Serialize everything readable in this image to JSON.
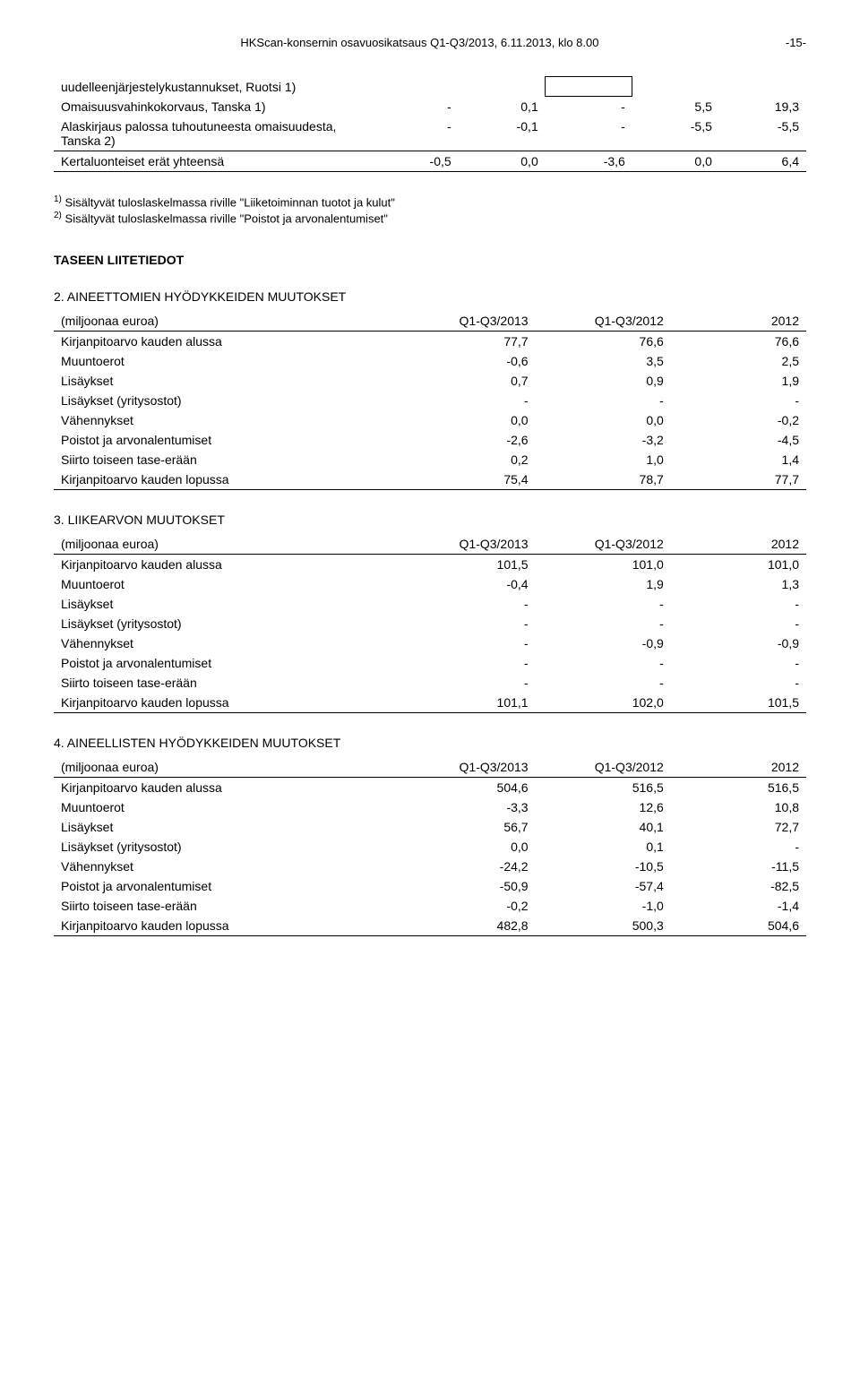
{
  "header": {
    "center": "HKScan-konsernin osavuosikatsaus Q1-Q3/2013, 6.11.2013, klo 8.00",
    "right": "-15-"
  },
  "topTable": {
    "rows": [
      {
        "label": "uudelleenjärjestelykustannukset, Ruotsi 1)",
        "c1": "",
        "c2": "",
        "c3": "",
        "c4": "",
        "c5": ""
      },
      {
        "label": "Omaisuusvahinkokorvaus, Tanska 1)",
        "c1": "-",
        "c2": "0,1",
        "c3": "-",
        "c4": "5,5",
        "c5": "19,3"
      },
      {
        "label": "Alaskirjaus palossa tuhoutuneesta omaisuudesta, Tanska 2)",
        "c1": "-",
        "c2": "-0,1",
        "c3": "-",
        "c4": "-5,5",
        "c5": "-5,5"
      },
      {
        "label": "Kertaluonteiset erät yhteensä",
        "c1": "-0,5",
        "c2": "0,0",
        "c3": "-3,6",
        "c4": "0,0",
        "c5": "6,4"
      }
    ]
  },
  "footnotes": {
    "f1": "Sisältyvät tuloslaskelmassa riville \"Liiketoiminnan tuotot ja kulut\"",
    "f2": "Sisältyvät tuloslaskelmassa riville \"Poistot ja arvonalentumiset\""
  },
  "sectionTitle": "TASEEN LIITETIEDOT",
  "tables": [
    {
      "title": "2. AINEETTOMIEN HYÖDYKKEIDEN MUUTOKSET",
      "headers": [
        "(miljoonaa euroa)",
        "Q1-Q3/2013",
        "Q1-Q3/2012",
        "2012"
      ],
      "rows": [
        {
          "label": "Kirjanpitoarvo kauden alussa",
          "c1": "77,7",
          "c2": "76,6",
          "c3": "76,6"
        },
        {
          "label": "Muuntoerot",
          "c1": "-0,6",
          "c2": "3,5",
          "c3": "2,5"
        },
        {
          "label": "Lisäykset",
          "c1": "0,7",
          "c2": "0,9",
          "c3": "1,9"
        },
        {
          "label": "Lisäykset (yritysostot)",
          "c1": "-",
          "c2": "-",
          "c3": "-"
        },
        {
          "label": "Vähennykset",
          "c1": "0,0",
          "c2": "0,0",
          "c3": "-0,2"
        },
        {
          "label": "Poistot ja arvonalentumiset",
          "c1": "-2,6",
          "c2": "-3,2",
          "c3": "-4,5"
        },
        {
          "label": "Siirto toiseen tase-erään",
          "c1": "0,2",
          "c2": "1,0",
          "c3": "1,4"
        },
        {
          "label": "Kirjanpitoarvo kauden lopussa",
          "c1": "75,4",
          "c2": "78,7",
          "c3": "77,7"
        }
      ]
    },
    {
      "title": "3. LIIKEARVON MUUTOKSET",
      "headers": [
        "(miljoonaa euroa)",
        "Q1-Q3/2013",
        "Q1-Q3/2012",
        "2012"
      ],
      "rows": [
        {
          "label": "Kirjanpitoarvo kauden alussa",
          "c1": "101,5",
          "c2": "101,0",
          "c3": "101,0"
        },
        {
          "label": "Muuntoerot",
          "c1": "-0,4",
          "c2": "1,9",
          "c3": "1,3"
        },
        {
          "label": "Lisäykset",
          "c1": "-",
          "c2": "-",
          "c3": "-"
        },
        {
          "label": "Lisäykset (yritysostot)",
          "c1": "-",
          "c2": "-",
          "c3": "-"
        },
        {
          "label": "Vähennykset",
          "c1": "-",
          "c2": "-0,9",
          "c3": "-0,9"
        },
        {
          "label": "Poistot ja arvonalentumiset",
          "c1": "-",
          "c2": "-",
          "c3": "-"
        },
        {
          "label": "Siirto toiseen tase-erään",
          "c1": "-",
          "c2": "-",
          "c3": "-"
        },
        {
          "label": "Kirjanpitoarvo kauden lopussa",
          "c1": "101,1",
          "c2": "102,0",
          "c3": "101,5"
        }
      ]
    },
    {
      "title": "4. AINEELLISTEN HYÖDYKKEIDEN MUUTOKSET",
      "headers": [
        "(miljoonaa euroa)",
        "Q1-Q3/2013",
        "Q1-Q3/2012",
        "2012"
      ],
      "rows": [
        {
          "label": "Kirjanpitoarvo kauden alussa",
          "c1": "504,6",
          "c2": "516,5",
          "c3": "516,5"
        },
        {
          "label": "Muuntoerot",
          "c1": "-3,3",
          "c2": "12,6",
          "c3": "10,8"
        },
        {
          "label": "Lisäykset",
          "c1": "56,7",
          "c2": "40,1",
          "c3": "72,7"
        },
        {
          "label": "Lisäykset (yritysostot)",
          "c1": "0,0",
          "c2": "0,1",
          "c3": "-"
        },
        {
          "label": "Vähennykset",
          "c1": "-24,2",
          "c2": "-10,5",
          "c3": "-11,5"
        },
        {
          "label": "Poistot ja arvonalentumiset",
          "c1": "-50,9",
          "c2": "-57,4",
          "c3": "-82,5"
        },
        {
          "label": "Siirto toiseen tase-erään",
          "c1": "-0,2",
          "c2": "-1,0",
          "c3": "-1,4"
        },
        {
          "label": "Kirjanpitoarvo kauden lopussa",
          "c1": "482,8",
          "c2": "500,3",
          "c3": "504,6"
        }
      ]
    }
  ]
}
